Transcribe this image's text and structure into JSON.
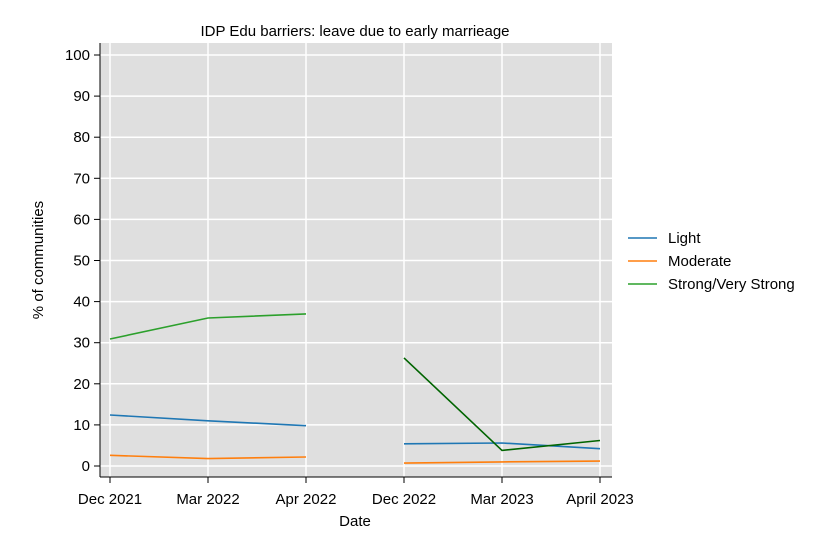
{
  "chart_data": {
    "type": "line",
    "title": "IDP Edu barriers: leave due to early marrieage",
    "xlabel": "Date",
    "ylabel": "% of communities",
    "ylim": [
      0,
      100
    ],
    "yticks": [
      0,
      10,
      20,
      30,
      40,
      50,
      60,
      70,
      80,
      90,
      100
    ],
    "categories": [
      "Dec 2021",
      "Mar 2022",
      "Apr 2022",
      "Dec 2022",
      "Mar 2023",
      "April 2023"
    ],
    "grid": true,
    "legend_position": "right",
    "series": [
      {
        "name": "Light",
        "color": "#1f77b4",
        "values": [
          12.4,
          11.0,
          9.8,
          null,
          null,
          null
        ],
        "segments": [
          [
            0,
            2
          ],
          [
            3,
            5
          ]
        ],
        "values_all": [
          12.4,
          11.0,
          9.8,
          5.4,
          5.6,
          4.2
        ]
      },
      {
        "name": "Moderate",
        "color": "#ff7f0e",
        "values_all": [
          2.6,
          1.8,
          2.2,
          0.7,
          1.0,
          1.2
        ],
        "segments": [
          [
            0,
            2
          ],
          [
            3,
            5
          ]
        ]
      },
      {
        "name": "Strong/Very Strong",
        "color": "#2ca02c",
        "values_all": [
          30.9,
          36.0,
          37.0,
          26.3,
          3.8,
          6.2
        ],
        "segments": [
          [
            0,
            2
          ],
          [
            3,
            5
          ]
        ],
        "segment_colors": [
          "#2ca02c",
          "#006400"
        ]
      }
    ]
  }
}
